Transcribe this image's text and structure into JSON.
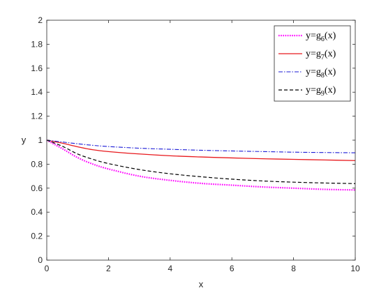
{
  "chart_data": {
    "type": "line",
    "title": "",
    "xlabel": "x",
    "ylabel": "y",
    "xlim": [
      0,
      10
    ],
    "ylim": [
      0,
      2
    ],
    "x_ticks": [
      0,
      2,
      4,
      6,
      8,
      10
    ],
    "y_ticks": [
      0,
      0.2,
      0.4,
      0.6,
      0.8,
      1,
      1.2,
      1.4,
      1.6,
      1.8,
      2
    ],
    "x_tick_labels": [
      "0",
      "2",
      "4",
      "6",
      "8",
      "10"
    ],
    "y_tick_labels": [
      "0",
      "0.2",
      "0.4",
      "0.6",
      "0.8",
      "1",
      "1.2",
      "1.4",
      "1.6",
      "1.8",
      "2"
    ],
    "grid": false,
    "legend_position": "top-right",
    "x": [
      0,
      0.5,
      1,
      1.5,
      2,
      3,
      4,
      5,
      6,
      7,
      8,
      9,
      10
    ],
    "series": [
      {
        "name": "y=g6(x)",
        "label_main": "y=g",
        "label_sub": "6",
        "label_tail": "(x)",
        "color": "#ff00ff",
        "style": "dotted",
        "values": [
          1.0,
          0.93,
          0.855,
          0.8,
          0.76,
          0.7,
          0.665,
          0.64,
          0.625,
          0.61,
          0.6,
          0.59,
          0.585
        ]
      },
      {
        "name": "y=g7(x)",
        "label_main": "y=g",
        "label_sub": "7",
        "label_tail": "(x)",
        "color": "#e8191d",
        "style": "solid",
        "values": [
          1.0,
          0.975,
          0.945,
          0.92,
          0.905,
          0.885,
          0.87,
          0.86,
          0.852,
          0.845,
          0.84,
          0.835,
          0.83
        ]
      },
      {
        "name": "y=g8(x)",
        "label_main": "y=g",
        "label_sub": "8",
        "label_tail": "(x)",
        "color": "#1a1ad6",
        "style": "dashdot",
        "values": [
          1.0,
          0.985,
          0.97,
          0.957,
          0.947,
          0.933,
          0.924,
          0.916,
          0.91,
          0.905,
          0.9,
          0.897,
          0.895
        ]
      },
      {
        "name": "y=g9(x)",
        "label_main": "y=g",
        "label_sub": "9",
        "label_tail": "(x)",
        "color": "#000000",
        "style": "dashed",
        "values": [
          1.0,
          0.95,
          0.885,
          0.84,
          0.805,
          0.755,
          0.72,
          0.695,
          0.675,
          0.66,
          0.65,
          0.643,
          0.638
        ]
      }
    ]
  }
}
